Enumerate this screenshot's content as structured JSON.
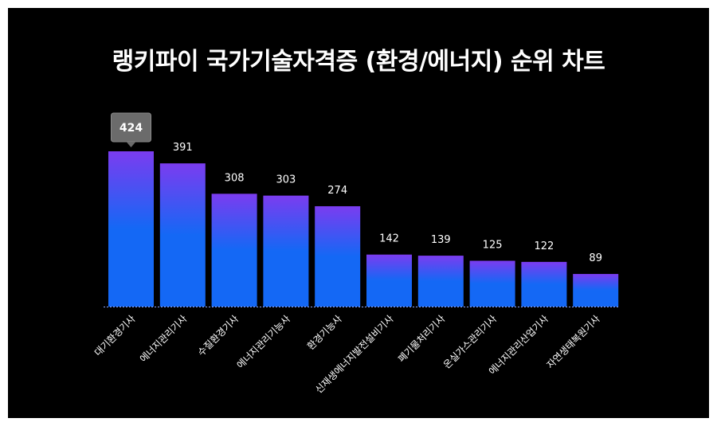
{
  "chart_data": {
    "type": "bar",
    "title": "랭키파이 국가기술자격증 (환경/에너지) 순위 차트",
    "categories": [
      "대기환경기사",
      "에너지관리기사",
      "수질환경기사",
      "에너지관리기능사",
      "환경기능사",
      "신재생에너지발전설비기사",
      "폐기물처리기사",
      "온실가스관리기사",
      "에너지관리산업기사",
      "자연생태복원기사"
    ],
    "values": [
      424,
      391,
      308,
      303,
      274,
      142,
      139,
      125,
      122,
      89
    ],
    "highlighted_index": 0,
    "ylim": [
      0,
      424
    ],
    "grid": false,
    "legend": "none",
    "colors": {
      "bar_top": "#7b3cf0",
      "bar_bottom": "#1468f5",
      "tooltip": "#6b6b6b",
      "background": "#000000",
      "text": "#ffffff"
    }
  }
}
